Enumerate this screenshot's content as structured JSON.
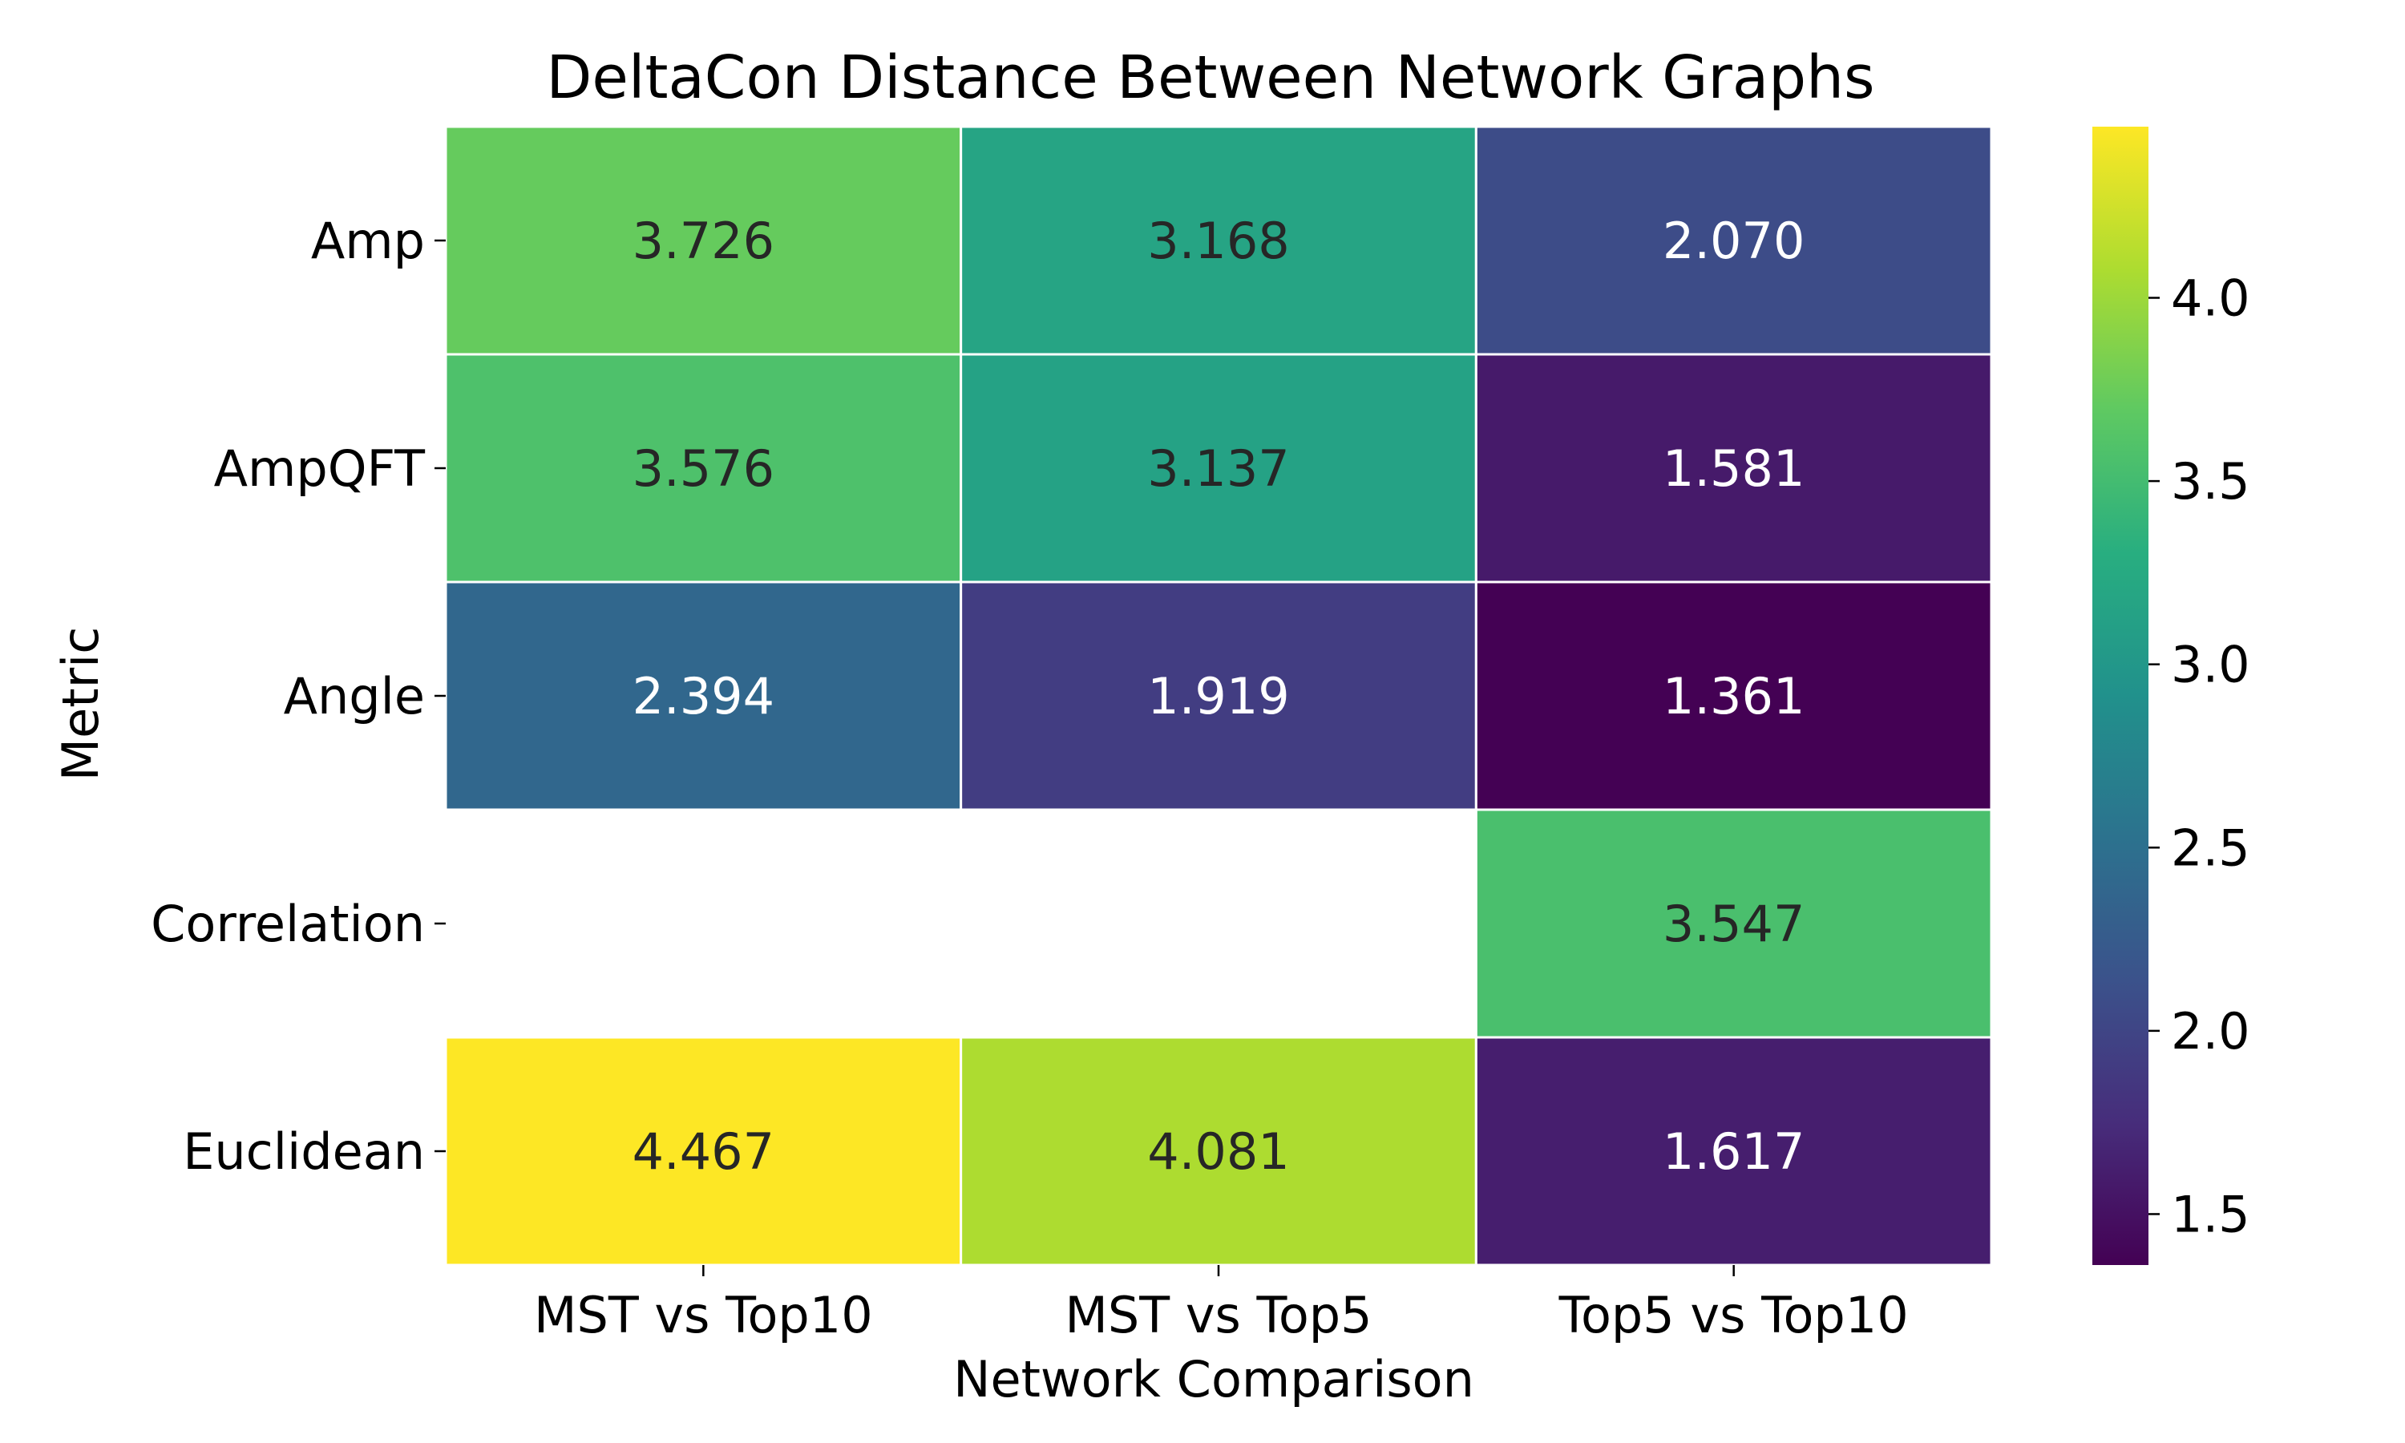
{
  "chart_data": {
    "type": "heatmap",
    "title": "DeltaCon Distance Between Network Graphs",
    "xlabel": "Network Comparison",
    "ylabel": "Metric",
    "x_categories": [
      "MST vs Top10",
      "MST vs Top5",
      "Top5 vs Top10"
    ],
    "y_categories": [
      "Amp",
      "AmpQFT",
      "Angle",
      "Correlation",
      "Euclidean"
    ],
    "values": [
      [
        3.726,
        3.168,
        2.07
      ],
      [
        3.576,
        3.137,
        1.581
      ],
      [
        2.394,
        1.919,
        1.361
      ],
      [
        null,
        null,
        3.547
      ],
      [
        4.467,
        4.081,
        1.617
      ]
    ],
    "value_labels": [
      [
        "3.726",
        "3.168",
        "2.070"
      ],
      [
        "3.576",
        "3.137",
        "1.581"
      ],
      [
        "2.394",
        "1.919",
        "1.361"
      ],
      [
        "",
        "",
        "3.547"
      ],
      [
        "4.467",
        "4.081",
        "1.617"
      ]
    ],
    "colormap": "viridis",
    "vmin": 1.361,
    "vmax": 4.467,
    "colorbar_ticks": [
      1.5,
      2.0,
      2.5,
      3.0,
      3.5,
      4.0
    ],
    "colorbar_tick_labels": [
      "1.5",
      "2.0",
      "2.5",
      "3.0",
      "3.5",
      "4.0"
    ],
    "grid": false
  }
}
